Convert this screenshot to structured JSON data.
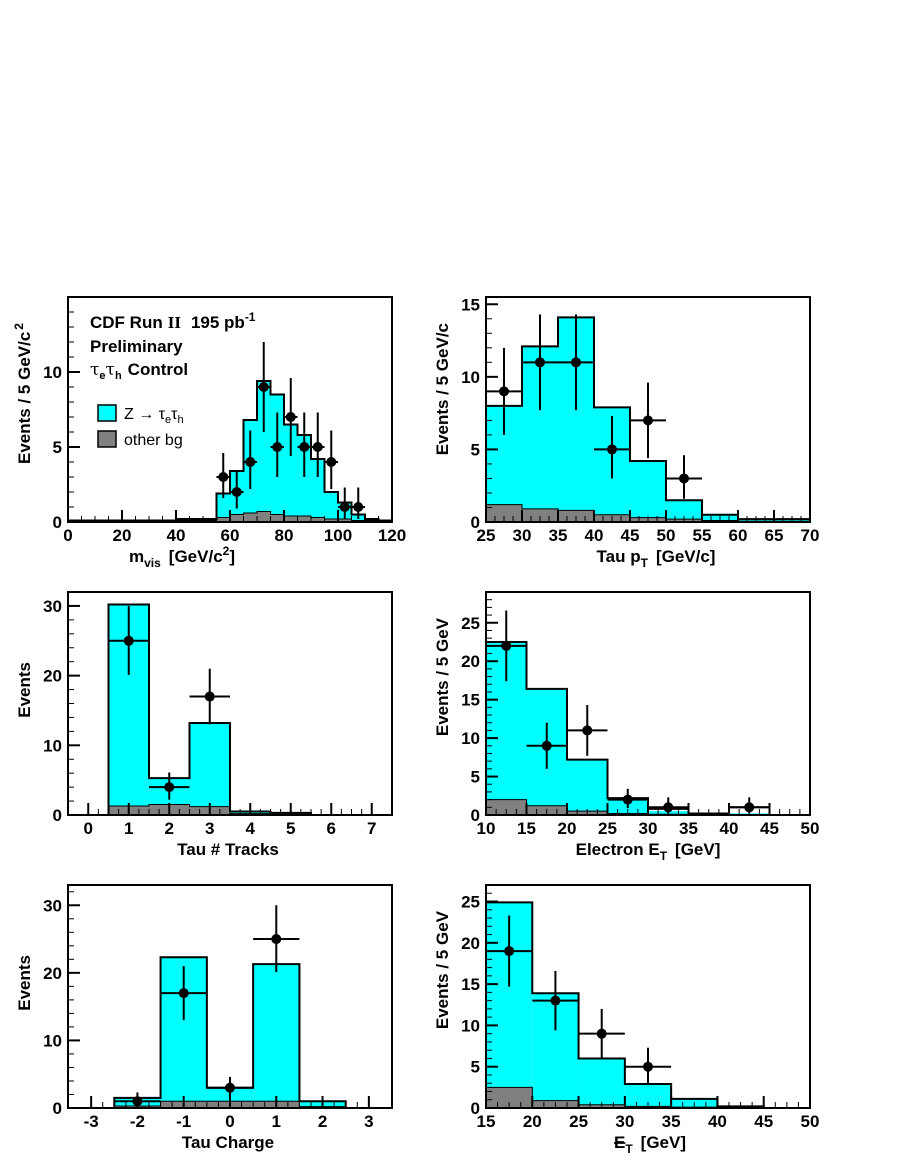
{
  "chart_data": [
    {
      "type": "histogram",
      "id": "mvis",
      "xlabel": "m",
      "xlabel_sub": "vis",
      "xlabel_tail": "[GeV/c",
      "xlabel_sup": "2",
      "xlabel_end": "]",
      "ylabel": "Events / 5 GeV/c",
      "ylabel_sup": "2",
      "xlim": [
        0,
        120
      ],
      "ylim": [
        0,
        15
      ],
      "xticks": [
        0,
        20,
        40,
        60,
        80,
        100,
        120
      ],
      "yticks": [
        0,
        5,
        10
      ],
      "edges": [
        0,
        5,
        10,
        15,
        20,
        25,
        30,
        35,
        40,
        45,
        50,
        55,
        60,
        65,
        70,
        75,
        80,
        85,
        90,
        95,
        100,
        105,
        110,
        115,
        120
      ],
      "signal": [
        0.1,
        0.1,
        0.1,
        0.1,
        0.1,
        0.1,
        0.1,
        0.1,
        0.2,
        0.2,
        0.2,
        1.9,
        3.4,
        6.8,
        9.4,
        8.5,
        6.5,
        5.8,
        4.2,
        2.0,
        1.3,
        0.5,
        0.2,
        0.1
      ],
      "background": [
        0,
        0,
        0,
        0,
        0,
        0,
        0,
        0,
        0.1,
        0.1,
        0.1,
        0.3,
        0.5,
        0.6,
        0.7,
        0.5,
        0.4,
        0.4,
        0.3,
        0.2,
        0.2,
        0.1,
        0.1,
        0.05
      ],
      "data_points": [
        {
          "x": 57.5,
          "y": 3,
          "ylo": 1.6,
          "yhi": 4.6
        },
        {
          "x": 62.5,
          "y": 2,
          "ylo": 0.9,
          "yhi": 3.4
        },
        {
          "x": 67.5,
          "y": 4,
          "ylo": 2.2,
          "yhi": 6.1
        },
        {
          "x": 72.5,
          "y": 9,
          "ylo": 6.0,
          "yhi": 12.0
        },
        {
          "x": 77.5,
          "y": 5,
          "ylo": 3.0,
          "yhi": 7.3
        },
        {
          "x": 82.5,
          "y": 7,
          "ylo": 4.4,
          "yhi": 9.6
        },
        {
          "x": 87.5,
          "y": 5,
          "ylo": 3.0,
          "yhi": 7.3
        },
        {
          "x": 92.5,
          "y": 5,
          "ylo": 3.0,
          "yhi": 7.3
        },
        {
          "x": 97.5,
          "y": 4,
          "ylo": 2.2,
          "yhi": 6.1
        },
        {
          "x": 102.5,
          "y": 1,
          "ylo": 0.2,
          "yhi": 2.3
        },
        {
          "x": 107.5,
          "y": 1,
          "ylo": 0.2,
          "yhi": 2.3
        }
      ],
      "annotation": {
        "line1": "CDF Run",
        "run_numeral": "II",
        "lumi": "195 pb",
        "lumi_sup": "-1",
        "line2": "Preliminary",
        "line3_a": "τ",
        "line3_a_sub": "e",
        "line3_b": "τ",
        "line3_b_sub": "h",
        "line3_tail": "Control"
      },
      "legend": [
        {
          "label": "Z → τ",
          "sub1": "e",
          "mid": "τ",
          "sub2": "h",
          "color": "#00ffff"
        },
        {
          "label": "other bg",
          "color": "#808080"
        }
      ]
    },
    {
      "type": "histogram",
      "id": "taupt",
      "xlabel": "Tau p",
      "xlabel_sub": "T",
      "xlabel_tail": "[GeV/c]",
      "ylabel": "Events / 5 GeV/c",
      "xlim": [
        25,
        70
      ],
      "ylim": [
        0,
        15.5
      ],
      "xticks": [
        25,
        30,
        35,
        40,
        45,
        50,
        55,
        60,
        65,
        70
      ],
      "yticks": [
        0,
        5,
        10,
        15
      ],
      "edges": [
        25,
        30,
        35,
        40,
        45,
        50,
        55,
        60,
        65,
        70
      ],
      "signal": [
        8.0,
        12.1,
        14.1,
        7.9,
        4.2,
        1.5,
        0.5,
        0.2,
        0.2
      ],
      "background": [
        1.2,
        0.9,
        0.8,
        0.5,
        0.3,
        0.2,
        0.1,
        0.05,
        0.05
      ],
      "data_points": [
        {
          "x": 27.5,
          "y": 9,
          "ylo": 6.0,
          "yhi": 12.0
        },
        {
          "x": 32.5,
          "y": 11,
          "ylo": 7.7,
          "yhi": 14.3
        },
        {
          "x": 37.5,
          "y": 11,
          "ylo": 7.7,
          "yhi": 14.3
        },
        {
          "x": 42.5,
          "y": 5,
          "ylo": 3.0,
          "yhi": 7.3
        },
        {
          "x": 47.5,
          "y": 7,
          "ylo": 4.4,
          "yhi": 9.6
        },
        {
          "x": 52.5,
          "y": 3,
          "ylo": 1.6,
          "yhi": 4.6
        }
      ]
    },
    {
      "type": "histogram",
      "id": "ntracks",
      "xlabel": "Tau # Tracks",
      "ylabel": "Events",
      "xlim": [
        -0.5,
        7.5
      ],
      "ylim": [
        0,
        32
      ],
      "xticks": [
        0,
        1,
        2,
        3,
        4,
        5,
        6,
        7
      ],
      "yticks": [
        0,
        10,
        20,
        30
      ],
      "edges": [
        0.5,
        1.5,
        2.5,
        3.5,
        4.5,
        5.5
      ],
      "signal": [
        30.2,
        5.3,
        13.2,
        0.5,
        0.3
      ],
      "background": [
        1.3,
        1.5,
        1.2,
        0.2,
        0.1
      ],
      "data_points": [
        {
          "x": 1,
          "y": 25,
          "ylo": 20.1,
          "yhi": 30.0
        },
        {
          "x": 2,
          "y": 4,
          "ylo": 2.2,
          "yhi": 6.1
        },
        {
          "x": 3,
          "y": 17,
          "ylo": 13.0,
          "yhi": 21.0
        }
      ]
    },
    {
      "type": "histogram",
      "id": "eleet",
      "xlabel": "Electron E",
      "xlabel_sub": "T",
      "xlabel_tail": "[GeV]",
      "ylabel": "Events / 5 GeV",
      "xlim": [
        10,
        50
      ],
      "ylim": [
        0,
        29
      ],
      "xticks": [
        10,
        15,
        20,
        25,
        30,
        35,
        40,
        45,
        50
      ],
      "yticks": [
        0,
        5,
        10,
        15,
        20,
        25
      ],
      "edges": [
        10,
        15,
        20,
        25,
        30,
        35,
        40,
        45
      ],
      "signal": [
        22.5,
        16.4,
        7.2,
        2.2,
        0.5,
        0.2,
        0.2
      ],
      "signal_outline": [
        22.5,
        16.4,
        7.2,
        2.2,
        0.8,
        0.2,
        1.0
      ],
      "background": [
        2.0,
        1.2,
        0.5,
        0.2,
        0.1,
        0.05,
        0.05
      ],
      "data_points": [
        {
          "x": 12.5,
          "y": 22,
          "ylo": 17.4,
          "yhi": 26.6
        },
        {
          "x": 17.5,
          "y": 9,
          "ylo": 6.0,
          "yhi": 12.0
        },
        {
          "x": 22.5,
          "y": 11,
          "ylo": 7.7,
          "yhi": 14.3
        },
        {
          "x": 27.5,
          "y": 2,
          "ylo": 0.9,
          "yhi": 3.4
        },
        {
          "x": 32.5,
          "y": 1,
          "ylo": 0.2,
          "yhi": 2.3
        },
        {
          "x": 42.5,
          "y": 1,
          "ylo": 0.2,
          "yhi": 2.3
        }
      ]
    },
    {
      "type": "histogram",
      "id": "charge",
      "xlabel": "Tau Charge",
      "ylabel": "Events",
      "xlim": [
        -3.5,
        3.5
      ],
      "ylim": [
        0,
        33
      ],
      "xticks": [
        -3,
        -2,
        -1,
        0,
        1,
        2,
        3
      ],
      "yticks": [
        0,
        10,
        20,
        30
      ],
      "edges": [
        -2.5,
        -1.5,
        -0.5,
        0.5,
        1.5,
        2.5
      ],
      "signal": [
        1.5,
        22.3,
        3.0,
        21.3,
        1.0
      ],
      "background": [
        0.3,
        1.0,
        1.0,
        1.0,
        0.2
      ],
      "data_points": [
        {
          "x": -2,
          "y": 1,
          "ylo": 0.2,
          "yhi": 2.3
        },
        {
          "x": -1,
          "y": 17,
          "ylo": 13.0,
          "yhi": 21.0
        },
        {
          "x": 0,
          "y": 3,
          "ylo": 1.6,
          "yhi": 4.6
        },
        {
          "x": 1,
          "y": 25,
          "ylo": 20.1,
          "yhi": 30.0
        }
      ]
    },
    {
      "type": "histogram",
      "id": "met",
      "xlabel": "E",
      "xlabel_slash": true,
      "xlabel_sub": "T",
      "xlabel_tail": "[GeV]",
      "ylabel": "Events / 5 GeV",
      "xlim": [
        15,
        50
      ],
      "ylim": [
        0,
        27
      ],
      "xticks": [
        15,
        20,
        25,
        30,
        35,
        40,
        45,
        50
      ],
      "yticks": [
        0,
        5,
        10,
        15,
        20,
        25
      ],
      "edges": [
        15,
        20,
        25,
        30,
        35,
        40,
        45
      ],
      "signal": [
        24.9,
        13.9,
        6.0,
        2.9,
        1.1,
        0.2
      ],
      "background": [
        2.5,
        0.9,
        0.4,
        0.2,
        0.1,
        0.05
      ],
      "data_points": [
        {
          "x": 17.5,
          "y": 19,
          "ylo": 14.7,
          "yhi": 23.3
        },
        {
          "x": 22.5,
          "y": 13,
          "ylo": 9.4,
          "yhi": 16.6
        },
        {
          "x": 27.5,
          "y": 9,
          "ylo": 6.0,
          "yhi": 12.0
        },
        {
          "x": 32.5,
          "y": 5,
          "ylo": 3.0,
          "yhi": 7.3
        }
      ]
    }
  ]
}
